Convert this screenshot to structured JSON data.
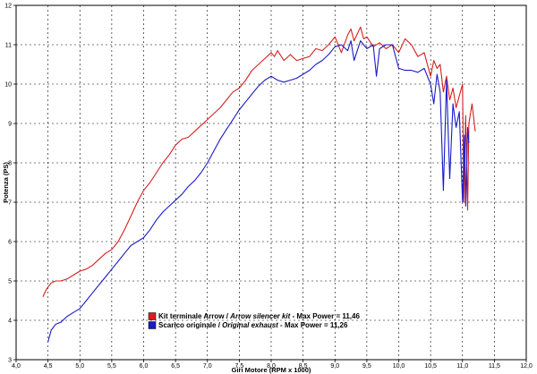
{
  "chart_data": {
    "type": "line",
    "xlabel": "Giri Motore (RPM x 1000)",
    "ylabel": "Potenza (PS)",
    "xlim": [
      4.0,
      12.0
    ],
    "ylim": [
      3.0,
      12.0
    ],
    "x_ticks": [
      "4,0",
      "4,5",
      "5,0",
      "5,5",
      "6,0",
      "6,5",
      "7,0",
      "7,5",
      "8,0",
      "8,5",
      "9,0",
      "9,5",
      "10,0",
      "10,5",
      "11,0",
      "11,5",
      "12,0"
    ],
    "y_ticks": [
      "3",
      "4",
      "5",
      "6",
      "7",
      "8",
      "9",
      "10",
      "11",
      "12"
    ],
    "grid": true,
    "legend_position": "bottom-center",
    "colors": {
      "red": "#d42020",
      "blue": "#1a1ac8"
    },
    "series": [
      {
        "color": "#d42020",
        "legend": {
          "a": "Kit terminale Arrow / ",
          "b": "Arrow silencer kit",
          "c": " - Max Power = 11,46"
        },
        "x": [
          4.42,
          4.48,
          4.55,
          4.62,
          4.7,
          4.8,
          4.9,
          5.0,
          5.1,
          5.2,
          5.3,
          5.4,
          5.5,
          5.6,
          5.7,
          5.8,
          5.9,
          6.0,
          6.1,
          6.2,
          6.3,
          6.4,
          6.5,
          6.6,
          6.7,
          6.8,
          6.9,
          7.0,
          7.1,
          7.2,
          7.3,
          7.4,
          7.5,
          7.6,
          7.7,
          7.8,
          7.9,
          8.0,
          8.05,
          8.1,
          8.2,
          8.3,
          8.4,
          8.5,
          8.6,
          8.7,
          8.8,
          8.9,
          9.0,
          9.1,
          9.2,
          9.25,
          9.3,
          9.4,
          9.45,
          9.5,
          9.6,
          9.7,
          9.8,
          9.9,
          10.0,
          10.1,
          10.2,
          10.3,
          10.4,
          10.5,
          10.55,
          10.6,
          10.65,
          10.7,
          10.75,
          10.8,
          10.85,
          10.9,
          10.95,
          11.0,
          11.02,
          11.05,
          11.08,
          11.1,
          11.15,
          11.2
        ],
        "y": [
          4.6,
          4.8,
          4.95,
          5.0,
          5.0,
          5.05,
          5.15,
          5.25,
          5.3,
          5.4,
          5.55,
          5.7,
          5.8,
          6.0,
          6.3,
          6.65,
          7.0,
          7.3,
          7.5,
          7.75,
          8.0,
          8.2,
          8.45,
          8.6,
          8.65,
          8.8,
          8.95,
          9.1,
          9.25,
          9.4,
          9.6,
          9.8,
          9.9,
          10.1,
          10.35,
          10.5,
          10.65,
          10.8,
          10.7,
          10.85,
          10.6,
          10.75,
          10.6,
          10.65,
          10.7,
          10.9,
          10.85,
          11.0,
          11.2,
          10.8,
          11.25,
          11.4,
          11.1,
          11.45,
          11.15,
          11.2,
          10.95,
          11.05,
          10.9,
          11.0,
          10.8,
          11.15,
          11.0,
          10.7,
          10.8,
          10.2,
          10.6,
          10.4,
          10.5,
          9.8,
          10.2,
          9.6,
          9.9,
          9.4,
          9.7,
          10.0,
          7.0,
          9.2,
          6.8,
          9.0,
          9.5,
          8.8
        ]
      },
      {
        "color": "#1a1ac8",
        "legend": {
          "a": "Scarico originale / ",
          "b": "Original exhaust",
          "c": " - Max Power = 11,26"
        },
        "x": [
          4.5,
          4.55,
          4.62,
          4.7,
          4.8,
          4.9,
          5.0,
          5.1,
          5.2,
          5.3,
          5.4,
          5.5,
          5.6,
          5.7,
          5.8,
          5.9,
          6.0,
          6.1,
          6.2,
          6.3,
          6.4,
          6.5,
          6.6,
          6.7,
          6.8,
          6.9,
          7.0,
          7.1,
          7.2,
          7.3,
          7.4,
          7.5,
          7.6,
          7.7,
          7.8,
          7.9,
          8.0,
          8.1,
          8.2,
          8.3,
          8.4,
          8.5,
          8.6,
          8.7,
          8.8,
          8.9,
          9.0,
          9.1,
          9.2,
          9.25,
          9.3,
          9.4,
          9.5,
          9.6,
          9.65,
          9.7,
          9.8,
          9.9,
          10.0,
          10.1,
          10.2,
          10.3,
          10.4,
          10.5,
          10.55,
          10.6,
          10.65,
          10.7,
          10.75,
          10.8,
          10.85,
          10.9,
          10.95,
          11.0,
          11.03,
          11.05,
          11.08,
          11.1
        ],
        "y": [
          3.45,
          3.75,
          3.9,
          3.95,
          4.1,
          4.2,
          4.3,
          4.5,
          4.7,
          4.9,
          5.1,
          5.3,
          5.5,
          5.7,
          5.9,
          6.0,
          6.1,
          6.3,
          6.55,
          6.75,
          6.9,
          7.05,
          7.2,
          7.4,
          7.55,
          7.75,
          8.0,
          8.3,
          8.6,
          8.85,
          9.1,
          9.35,
          9.55,
          9.75,
          9.95,
          10.1,
          10.2,
          10.1,
          10.05,
          10.1,
          10.15,
          10.25,
          10.35,
          10.5,
          10.6,
          10.75,
          10.95,
          11.0,
          10.85,
          11.1,
          10.6,
          11.1,
          10.9,
          11.0,
          10.2,
          10.9,
          11.0,
          11.0,
          10.4,
          10.35,
          10.35,
          10.3,
          10.4,
          10.0,
          9.5,
          10.25,
          9.8,
          7.3,
          10.1,
          7.6,
          9.5,
          8.9,
          9.3,
          7.0,
          8.7,
          6.9,
          8.9,
          8.5
        ]
      }
    ]
  }
}
